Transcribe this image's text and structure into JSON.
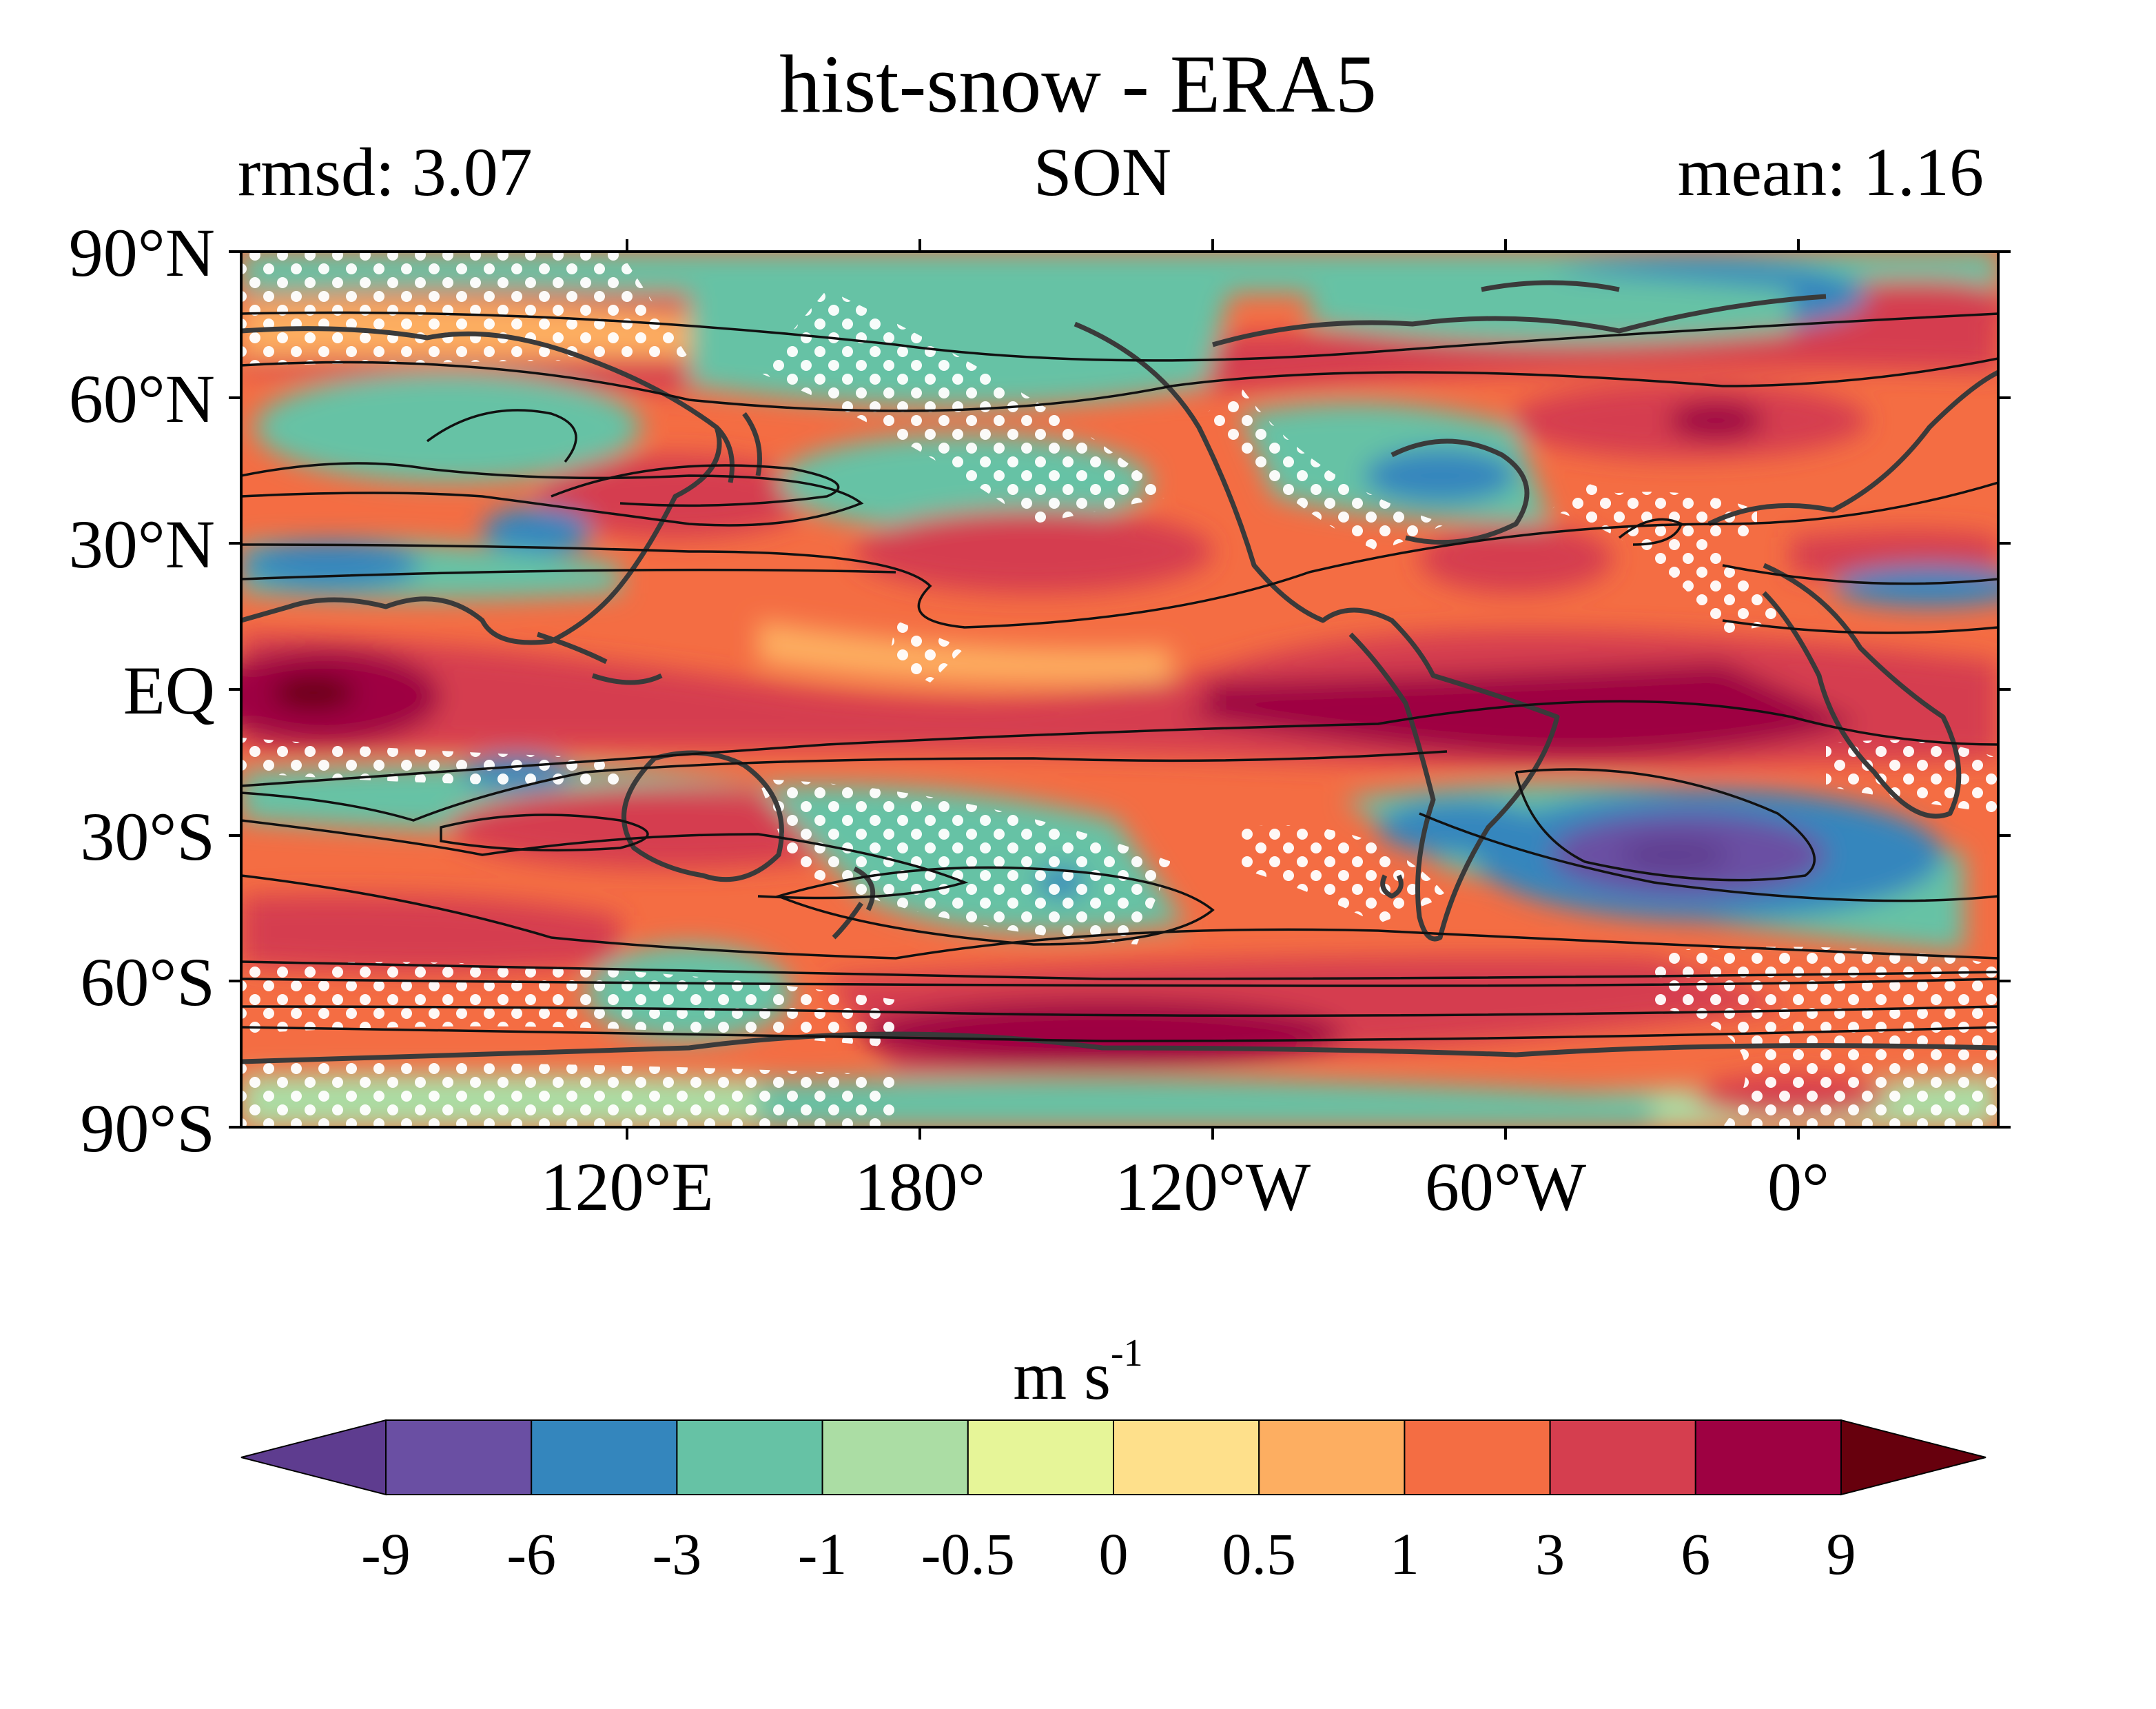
{
  "title": "hist-snow - ERA5",
  "subtitle_left": "rmsd: 3.07",
  "subtitle_center": "SON",
  "subtitle_right": "mean: 1.16",
  "lat_labels": [
    "90°N",
    "60°N",
    "30°N",
    "EQ",
    "30°S",
    "60°S",
    "90°S"
  ],
  "lon_labels": [
    "120°E",
    "180°",
    "120°W",
    "60°W",
    "0°"
  ],
  "colorbar": {
    "units_base": "m s",
    "units_exp": "-1",
    "levels": [
      "-9",
      "-6",
      "-3",
      "-1",
      "-0.5",
      "0",
      "0.5",
      "1",
      "3",
      "6",
      "9"
    ],
    "colors": [
      "#5e3c8f",
      "#6a4fa3",
      "#3486bd",
      "#66c2a5",
      "#abdda4",
      "#e6f598",
      "#fee08b",
      "#fdae61",
      "#f46d43",
      "#d53e4f",
      "#9e0142",
      "#67000d"
    ]
  }
}
